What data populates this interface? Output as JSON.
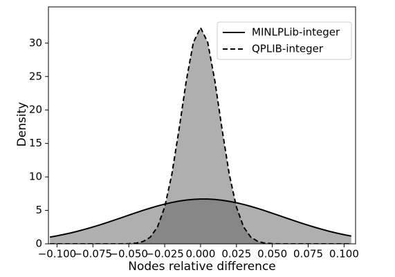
{
  "chart_data": {
    "type": "area",
    "xlabel": "Nodes relative difference",
    "ylabel": "Density",
    "x": [
      -0.105,
      -0.1,
      -0.095,
      -0.09,
      -0.085,
      -0.08,
      -0.075,
      -0.07,
      -0.065,
      -0.06,
      -0.055,
      -0.05,
      -0.045,
      -0.04,
      -0.035,
      -0.03,
      -0.025,
      -0.02,
      -0.015,
      -0.01,
      -0.005,
      0,
      0.005,
      0.01,
      0.015,
      0.02,
      0.025,
      0.03,
      0.035,
      0.04,
      0.045,
      0.05,
      0.055,
      0.06,
      0.065,
      0.07,
      0.075,
      0.08,
      0.085,
      0.09,
      0.095,
      0.1,
      0.105
    ],
    "series": [
      {
        "name": "MINLPLib-integer",
        "color": "#000000",
        "linestyle": "solid",
        "values": [
          1.01,
          1.2,
          1.42,
          1.65,
          1.92,
          2.21,
          2.52,
          2.84,
          3.19,
          3.55,
          3.92,
          4.29,
          4.65,
          5.01,
          5.34,
          5.66,
          5.94,
          6.18,
          6.39,
          6.54,
          6.65,
          6.7,
          6.69,
          6.63,
          6.52,
          6.35,
          6.14,
          5.89,
          5.6,
          5.28,
          4.94,
          4.57,
          4.21,
          3.84,
          3.48,
          3.12,
          2.78,
          2.45,
          2.15,
          1.86,
          1.6,
          1.37,
          1.16
        ]
      },
      {
        "name": "QPLIB-integer",
        "color": "#000000",
        "linestyle": "dashed",
        "values": [
          0,
          0,
          0,
          0,
          0,
          0,
          0,
          0,
          0,
          0,
          0,
          0.03,
          0.1,
          0.35,
          1.0,
          2.52,
          5.49,
          10.4,
          17.1,
          24.3,
          30.1,
          32.3,
          30.1,
          24.3,
          17.1,
          10.4,
          5.49,
          2.52,
          1.0,
          0.35,
          0.1,
          0.03,
          0,
          0,
          0,
          0,
          0,
          0,
          0,
          0,
          0,
          0,
          0
        ]
      }
    ],
    "xlim": [
      -0.106,
      0.108
    ],
    "ylim": [
      0,
      35.4
    ],
    "xticks": [
      {
        "value": -0.1,
        "label": "−0.100"
      },
      {
        "value": -0.075,
        "label": "−0.075"
      },
      {
        "value": -0.05,
        "label": "−0.050"
      },
      {
        "value": -0.025,
        "label": "−0.025"
      },
      {
        "value": 0,
        "label": "0.000"
      },
      {
        "value": 0.025,
        "label": "0.025"
      },
      {
        "value": 0.05,
        "label": "0.050"
      },
      {
        "value": 0.075,
        "label": "0.075"
      },
      {
        "value": 0.1,
        "label": "0.100"
      }
    ],
    "yticks": [
      0,
      5,
      10,
      15,
      20,
      25,
      30
    ],
    "legend": "upper right"
  }
}
